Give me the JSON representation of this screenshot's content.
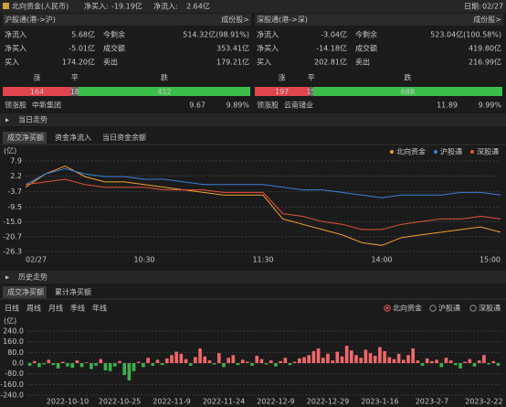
{
  "header": {
    "title": "北向资金(人民币)",
    "net_buy_label": "净买入:",
    "net_buy": "-19.19亿",
    "net_inflow_label": "净流入:",
    "net_inflow": "2.64亿",
    "date_label": "日期:",
    "date": "02/27"
  },
  "panels": [
    {
      "title": "沪股通(港->沪)",
      "link": "成份股>",
      "rows": [
        [
          "净流入",
          "5.68亿",
          "今剩余",
          "514.32亿(98.91%)"
        ],
        [
          "净买入",
          "-5.01亿",
          "成交额",
          "353.41亿"
        ],
        [
          "买入",
          "174.20亿",
          "卖出",
          "179.21亿"
        ]
      ],
      "breadth": {
        "labels": [
          "涨",
          "平",
          "跌"
        ],
        "values": [
          164,
          18,
          412
        ]
      },
      "leader": {
        "label": "领涨股",
        "name": "中新集团",
        "price": "9.67",
        "change": "9.89%"
      }
    },
    {
      "title": "深股通(港->深)",
      "link": "成份股>",
      "rows": [
        [
          "净流入",
          "-3.04亿",
          "今剩余",
          "523.04亿(100.58%)"
        ],
        [
          "净买入",
          "-14.18亿",
          "成交额",
          "419.80亿"
        ],
        [
          "买入",
          "202.81亿",
          "卖出",
          "216.99亿"
        ]
      ],
      "breadth": {
        "labels": [
          "涨",
          "平",
          "跌"
        ],
        "values": [
          197,
          15,
          688
        ]
      },
      "leader": {
        "label": "领涨股",
        "name": "云南锗业",
        "price": "11.89",
        "change": "9.99%"
      }
    }
  ],
  "intraday": {
    "section": "当日走势",
    "tabs": [
      "成交净买额",
      "资金净流入",
      "当日资金余额"
    ]
  },
  "history": {
    "section": "历史走势",
    "tabs": [
      "成交净买额",
      "累计净买额"
    ],
    "periods": [
      "日线",
      "周线",
      "月线",
      "季线",
      "年线"
    ],
    "options": [
      "北向资金",
      "沪股通",
      "深股通"
    ]
  },
  "chart_data": [
    {
      "type": "line",
      "y_label": "(亿)",
      "legend": "top-right",
      "grid": true,
      "categories": [
        "02/27",
        null,
        null,
        null,
        null,
        null,
        "10:30",
        null,
        null,
        null,
        null,
        null,
        "11:30",
        null,
        null,
        null,
        null,
        null,
        "14:00",
        null,
        null,
        null,
        null,
        null,
        "15:00"
      ],
      "series": [
        {
          "name": "北向资金",
          "color": "#f0a030",
          "values": [
            -2,
            3,
            6,
            2,
            0,
            0,
            -1,
            -2,
            -3,
            -4,
            -5,
            -5,
            -5,
            -14,
            -16,
            -18,
            -20,
            -23,
            -24,
            -21,
            -20,
            -19,
            -18,
            -17,
            -19
          ]
        },
        {
          "name": "沪股通",
          "color": "#3a7fe0",
          "values": [
            -1,
            3,
            5,
            3,
            2,
            2,
            1,
            1,
            0,
            -1,
            -1,
            -1,
            -1,
            -2,
            -3,
            -3,
            -4,
            -5,
            -6,
            -5,
            -5,
            -5,
            -4,
            -4,
            -5
          ]
        },
        {
          "name": "深股通",
          "color": "#e8503a",
          "values": [
            -1,
            0,
            1,
            -1,
            -2,
            -2,
            -2,
            -3,
            -3,
            -3,
            -4,
            -4,
            -4,
            -12,
            -13,
            -15,
            -16,
            -18,
            -18,
            -16,
            -15,
            -14,
            -14,
            -13,
            -14
          ]
        }
      ],
      "ylim": [
        -26.3,
        7.9
      ],
      "yticks": [
        7.9,
        2.2,
        -3.7,
        -9.5,
        {
          "value": -15,
          "label": "-15.0"
        },
        -20.7,
        -26.3
      ]
    },
    {
      "type": "bar",
      "y_label": "(亿)",
      "grid": true,
      "up_color": "#f0676b",
      "down_color": "#3cb04a",
      "categories": [
        null,
        null,
        null,
        null,
        null,
        null,
        null,
        null,
        "2022-10-10",
        null,
        null,
        null,
        null,
        null,
        null,
        null,
        null,
        null,
        null,
        "2022-10-25",
        null,
        null,
        null,
        null,
        null,
        null,
        null,
        null,
        null,
        null,
        "2022-11-9",
        null,
        null,
        null,
        null,
        null,
        null,
        null,
        null,
        null,
        null,
        "2022-11-24",
        null,
        null,
        null,
        null,
        null,
        null,
        null,
        null,
        null,
        null,
        "2022-12-9",
        null,
        null,
        null,
        null,
        null,
        null,
        null,
        null,
        null,
        null,
        "2022-12-29",
        null,
        null,
        null,
        null,
        null,
        null,
        null,
        null,
        null,
        null,
        "2023-1-16",
        null,
        null,
        null,
        null,
        null,
        null,
        null,
        null,
        null,
        null,
        "2023-2-7",
        null,
        null,
        null,
        null,
        null,
        null,
        null,
        null,
        null,
        null,
        "2023-2-22",
        null,
        null,
        null
      ],
      "values": [
        -20,
        15,
        -30,
        -10,
        25,
        -15,
        -40,
        10,
        -25,
        -35,
        20,
        -30,
        5,
        -45,
        -20,
        30,
        -55,
        -60,
        -25,
        15,
        -90,
        -130,
        -60,
        10,
        -30,
        40,
        -20,
        25,
        -15,
        35,
        60,
        85,
        70,
        30,
        -20,
        45,
        110,
        50,
        20,
        -10,
        75,
        -30,
        40,
        60,
        -15,
        25,
        10,
        -20,
        55,
        30,
        -10,
        20,
        -25,
        15,
        40,
        -15,
        10,
        35,
        45,
        60,
        90,
        110,
        40,
        70,
        20,
        85,
        50,
        130,
        95,
        60,
        40,
        100,
        75,
        55,
        120,
        90,
        45,
        30,
        70,
        25,
        60,
        110,
        20,
        -20,
        35,
        15,
        25,
        -30,
        40,
        20,
        -15,
        -40,
        10,
        30,
        -25,
        20,
        60,
        -10,
        15,
        -20
      ],
      "ylim": [
        -240,
        240
      ],
      "yticks": [
        {
          "value": 240,
          "label": "240.0"
        },
        {
          "value": 160,
          "label": "160.0"
        },
        {
          "value": 80,
          "label": "80.0"
        },
        {
          "value": 0,
          "label": "0.0"
        },
        {
          "value": -80,
          "label": "-80.0"
        },
        {
          "value": -160,
          "label": "-160.0"
        },
        {
          "value": -240,
          "label": "-240.0"
        }
      ]
    }
  ]
}
